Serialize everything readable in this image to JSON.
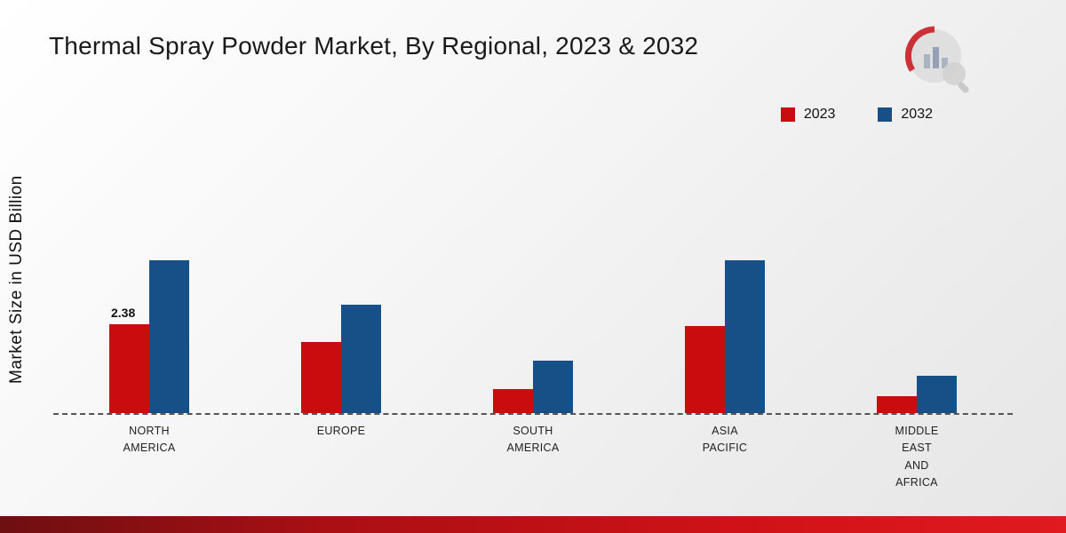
{
  "title": "Thermal Spray Powder Market, By Regional, 2023 & 2032",
  "ylabel": "Market Size in USD Billion",
  "legend": [
    {
      "label": "2023",
      "color": "#c90d0e"
    },
    {
      "label": "2032",
      "color": "#174f87"
    }
  ],
  "chart_data": {
    "type": "bar",
    "title": "Thermal Spray Powder Market, By Regional, 2023 & 2032",
    "ylabel": "Market Size in USD Billion",
    "xlabel": "",
    "categories": [
      "North America",
      "Europe",
      "South America",
      "Asia Pacific",
      "Middle East and Africa"
    ],
    "category_labels": [
      "NORTH\nAMERICA",
      "EUROPE",
      "SOUTH\nAMERICA",
      "ASIA\nPACIFIC",
      "MIDDLE\nEAST\nAND\nAFRICA"
    ],
    "series": [
      {
        "name": "2023",
        "color": "#c90d0e",
        "values": [
          2.38,
          1.9,
          0.64,
          2.33,
          0.45
        ]
      },
      {
        "name": "2032",
        "color": "#174f87",
        "values": [
          4.1,
          2.9,
          1.4,
          4.1,
          1.0
        ]
      }
    ],
    "annotations": [
      {
        "category_index": 0,
        "series_index": 0,
        "text": "2.38"
      }
    ],
    "ylim": [
      0,
      4.5
    ],
    "grid": false,
    "baseline_style": "dashed",
    "legend_position": "top-right"
  },
  "footer": {
    "band_color_start": "#6e0f12",
    "band_color_end": "#e01a1f"
  }
}
